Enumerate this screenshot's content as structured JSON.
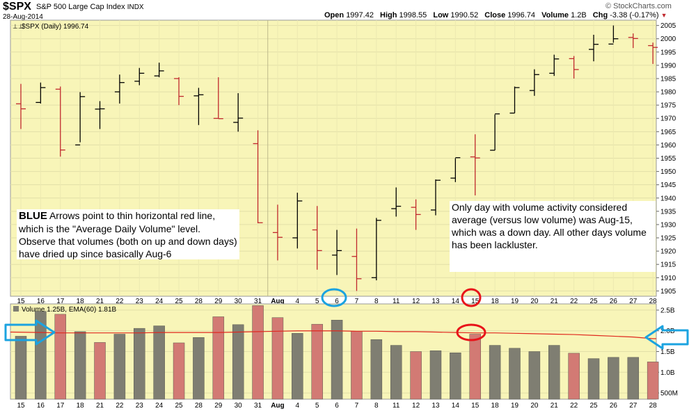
{
  "header": {
    "symbol": "$SPX",
    "name": "S&P 500 Large Cap Index",
    "exchange": "INDX",
    "date": "28-Aug-2014",
    "watermark": "© StockCharts.com",
    "quote": [
      {
        "label": "Open",
        "value": "1997.42"
      },
      {
        "label": "High",
        "value": "1998.55"
      },
      {
        "label": "Low",
        "value": "1990.52"
      },
      {
        "label": "Close",
        "value": "1996.74"
      },
      {
        "label": "Volume",
        "value": "1.2B"
      },
      {
        "label": "Chg",
        "value": "-3.38 (-0.17%)"
      }
    ]
  },
  "price_panel_label": "$SPX (Daily) 1996.74",
  "volume_panel_label": "Volume 1.25B, EMA(60) 1.81B",
  "colors": {
    "up": "#000000",
    "down": "#c0282d",
    "panel_bg": "#f8f5b8",
    "vol_up": "#7f7e72",
    "vol_down": "#d27a74",
    "ema": "#e0281e",
    "annotation_blue": "#1ba3e0",
    "annotation_red": "#e8141a"
  },
  "annotations": {
    "left_text_bold": "BLUE",
    "left_text": " Arrows point to thin horizontal red line, which is the \"Average Daily Volume\" level. Observe that volumes (both on up and down days) have dried up since basically Aug-6",
    "right_text": "Only day with volume activity considered average (versus low volume) was Aug-15, which was a down day.   All other days volume has been lackluster."
  },
  "chart_data": [
    {
      "type": "ohlc",
      "title": "$SPX (Daily) 1996.74",
      "x_tick_labels": [
        "15",
        "16",
        "17",
        "18",
        "21",
        "22",
        "23",
        "24",
        "25",
        "28",
        "29",
        "30",
        "31",
        "Aug",
        "4",
        "5",
        "6",
        "7",
        "8",
        "11",
        "12",
        "13",
        "14",
        "15",
        "18",
        "19",
        "20",
        "21",
        "22",
        "25",
        "26",
        "27",
        "28"
      ],
      "ylim": [
        1903,
        2007
      ],
      "yticks": [
        1905,
        1910,
        1915,
        1920,
        1925,
        1930,
        1935,
        1940,
        1945,
        1950,
        1955,
        1960,
        1965,
        1970,
        1975,
        1980,
        1985,
        1990,
        1995,
        2000,
        2005
      ],
      "bars": [
        {
          "label": "15",
          "open": 1975.5,
          "high": 1983.0,
          "low": 1966.0,
          "close": 1973.6
        },
        {
          "label": "16",
          "open": 1976.0,
          "high": 1983.5,
          "low": 1975.6,
          "close": 1981.6
        },
        {
          "label": "17",
          "open": 1981.0,
          "high": 1982.0,
          "low": 1955.6,
          "close": 1958.1
        },
        {
          "label": "18",
          "open": 1960.0,
          "high": 1979.9,
          "low": 1961.0,
          "close": 1978.2
        },
        {
          "label": "21",
          "open": 1973.5,
          "high": 1976.5,
          "low": 1966.0,
          "close": 1973.6
        },
        {
          "label": "22",
          "open": 1980.0,
          "high": 1986.5,
          "low": 1975.6,
          "close": 1983.5
        },
        {
          "label": "23",
          "open": 1984.0,
          "high": 1989.0,
          "low": 1982.5,
          "close": 1987.0
        },
        {
          "label": "24",
          "open": 1986.0,
          "high": 1991.0,
          "low": 1985.5,
          "close": 1987.9
        },
        {
          "label": "25",
          "open": 1985.0,
          "high": 1985.5,
          "low": 1975.0,
          "close": 1978.3
        },
        {
          "label": "28",
          "open": 1978.5,
          "high": 1981.5,
          "low": 1967.5,
          "close": 1978.9
        },
        {
          "label": "29",
          "open": 1970.0,
          "high": 1985.5,
          "low": 1970.0,
          "close": 1969.9
        },
        {
          "label": "30",
          "open": 1968.5,
          "high": 1979.5,
          "low": 1965.0,
          "close": 1970.1
        },
        {
          "label": "31",
          "open": 1960.5,
          "high": 1965.5,
          "low": 1930.5,
          "close": 1930.7
        },
        {
          "label": "Aug",
          "open": 1927.0,
          "high": 1937.5,
          "low": 1916.5,
          "close": 1925.2
        },
        {
          "label": "4",
          "open": 1925.0,
          "high": 1942.0,
          "low": 1921.0,
          "close": 1938.9
        },
        {
          "label": "5",
          "open": 1928.0,
          "high": 1937.0,
          "low": 1913.0,
          "close": 1920.2
        },
        {
          "label": "6",
          "open": 1918.5,
          "high": 1928.0,
          "low": 1911.0,
          "close": 1920.2
        },
        {
          "label": "7",
          "open": 1918.0,
          "high": 1928.5,
          "low": 1905.0,
          "close": 1909.6
        },
        {
          "label": "8",
          "open": 1910.0,
          "high": 1932.5,
          "low": 1909.0,
          "close": 1931.6
        },
        {
          "label": "11",
          "open": 1936.0,
          "high": 1944.0,
          "low": 1933.0,
          "close": 1936.9
        },
        {
          "label": "12",
          "open": 1936.5,
          "high": 1939.5,
          "low": 1928.0,
          "close": 1933.8
        },
        {
          "label": "13",
          "open": 1935.5,
          "high": 1947.0,
          "low": 1933.5,
          "close": 1946.7
        },
        {
          "label": "14",
          "open": 1947.5,
          "high": 1955.0,
          "low": 1946.0,
          "close": 1955.2
        },
        {
          "label": "15",
          "open": 1955.5,
          "high": 1964.0,
          "low": 1941.0,
          "close": 1955.1
        },
        {
          "label": "18",
          "open": 1958.0,
          "high": 1971.5,
          "low": 1958.0,
          "close": 1971.7
        },
        {
          "label": "19",
          "open": 1972.0,
          "high": 1982.0,
          "low": 1972.0,
          "close": 1981.6
        },
        {
          "label": "20",
          "open": 1980.5,
          "high": 1988.5,
          "low": 1978.5,
          "close": 1986.5
        },
        {
          "label": "21",
          "open": 1987.0,
          "high": 1994.0,
          "low": 1986.0,
          "close": 1992.4
        },
        {
          "label": "22",
          "open": 1992.5,
          "high": 1993.5,
          "low": 1985.0,
          "close": 1988.4
        },
        {
          "label": "25",
          "open": 1996.0,
          "high": 2001.5,
          "low": 1991.5,
          "close": 1997.9
        },
        {
          "label": "26",
          "open": 1998.0,
          "high": 2005.0,
          "low": 1998.5,
          "close": 2000.0
        },
        {
          "label": "27",
          "open": 2000.5,
          "high": 2002.0,
          "low": 1996.5,
          "close": 2000.1
        },
        {
          "label": "28",
          "open": 1997.42,
          "high": 1998.55,
          "low": 1990.52,
          "close": 1996.74
        }
      ]
    },
    {
      "type": "bar",
      "title": "Volume 1.25B, EMA(60) 1.81B",
      "categories": [
        "15",
        "16",
        "17",
        "18",
        "21",
        "22",
        "23",
        "24",
        "25",
        "28",
        "29",
        "30",
        "31",
        "Aug",
        "4",
        "5",
        "6",
        "7",
        "8",
        "11",
        "12",
        "13",
        "14",
        "15",
        "18",
        "19",
        "20",
        "21",
        "22",
        "25",
        "26",
        "27",
        "28"
      ],
      "ylim": [
        0.35,
        2.65
      ],
      "ytick_labels": [
        {
          "value": 2.5,
          "label": "2.5B"
        },
        {
          "value": 2.0,
          "label": "2.0B"
        },
        {
          "value": 1.5,
          "label": "1.5B"
        },
        {
          "value": 1.0,
          "label": "1.0B"
        },
        {
          "value": 0.5,
          "label": "500M"
        }
      ],
      "volumes": [
        1.87,
        2.47,
        2.4,
        1.98,
        1.72,
        1.92,
        2.06,
        2.12,
        1.71,
        1.84,
        2.34,
        2.15,
        2.61,
        2.32,
        1.94,
        2.16,
        2.26,
        1.99,
        1.79,
        1.65,
        1.5,
        1.52,
        1.47,
        1.92,
        1.65,
        1.58,
        1.5,
        1.65,
        1.46,
        1.33,
        1.36,
        1.36,
        1.25
      ],
      "directions": [
        "up",
        "up",
        "down",
        "up",
        "down",
        "up",
        "up",
        "up",
        "down",
        "up",
        "down",
        "up",
        "down",
        "down",
        "up",
        "down",
        "up",
        "down",
        "up",
        "up",
        "down",
        "up",
        "up",
        "down",
        "up",
        "up",
        "up",
        "up",
        "down",
        "up",
        "up",
        "up",
        "down"
      ],
      "ema": [
        1.97,
        1.96,
        1.95,
        1.95,
        1.95,
        1.95,
        1.95,
        1.96,
        1.96,
        1.96,
        1.96,
        1.97,
        1.98,
        1.99,
        2.0,
        2.0,
        2.0,
        1.99,
        1.99,
        1.98,
        1.98,
        1.97,
        1.96,
        1.95,
        1.95,
        1.94,
        1.93,
        1.92,
        1.91,
        1.89,
        1.87,
        1.85,
        1.81
      ]
    }
  ]
}
